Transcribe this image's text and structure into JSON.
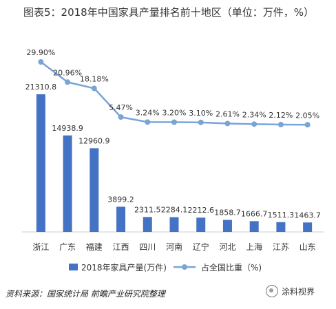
{
  "title": "图表5：2018年中国家具产量排名前十地区（单位：万件，%）",
  "source": "资料来源：国家统计局 前瞻产业研究院整理",
  "watermark": "涂料视界",
  "colors": {
    "bar": "#4472c4",
    "line": "#7aa3d6"
  },
  "chart_data": {
    "type": "bar",
    "categories": [
      "浙江",
      "广东",
      "福建",
      "江西",
      "四川",
      "河南",
      "辽宁",
      "河北",
      "上海",
      "江苏",
      "山东"
    ],
    "series": [
      {
        "name": "2018年家具产量(万件)",
        "type": "bar",
        "values": [
          21310.8,
          14938.9,
          12960.9,
          3899.2,
          2311.5,
          2284.1,
          2212.6,
          1858.7,
          1666.7,
          1511.3,
          1463.7
        ],
        "labels": [
          "21310.8",
          "14938.9",
          "12960.9",
          "3899.2",
          "2311.5",
          "2284.1",
          "2212.6",
          "1858.7",
          "1666.7",
          "1511.3",
          "1463.7"
        ]
      },
      {
        "name": "占全国比重（%)",
        "type": "line",
        "values": [
          29.9,
          20.96,
          18.18,
          5.47,
          3.24,
          3.2,
          3.1,
          2.61,
          2.34,
          2.12,
          2.05
        ],
        "labels": [
          "29.90%",
          "20.96%",
          "18.18%",
          "5.47%",
          "3.24%",
          "3.20%",
          "3.10%",
          "2.61%",
          "2.34%",
          "2.12%",
          "2.05%"
        ]
      }
    ],
    "legend_position": "bottom",
    "grid": false
  }
}
